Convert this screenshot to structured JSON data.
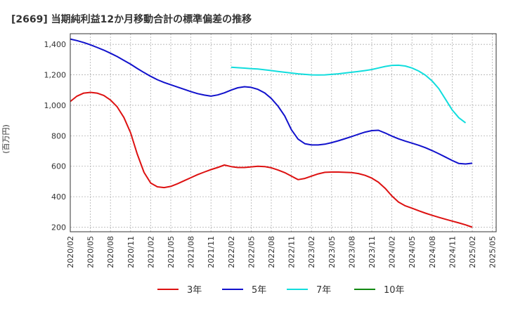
{
  "chart_data": {
    "type": "line",
    "title": "[2669]  当期純利益12か月移動合計の標準偏差の推移",
    "ylabel": "(百万円)",
    "xlabel": "",
    "ylim": [
      170,
      1470
    ],
    "yticks": [
      200,
      400,
      600,
      800,
      1000,
      1200,
      1400
    ],
    "ytick_labels": [
      "200",
      "400",
      "600",
      "800",
      "1,000",
      "1,200",
      "1,400"
    ],
    "x_range": [
      0,
      60
    ],
    "xticks": [
      {
        "pos": 0,
        "label": "2020/02"
      },
      {
        "pos": 3,
        "label": "2020/05"
      },
      {
        "pos": 6,
        "label": "2020/08"
      },
      {
        "pos": 9,
        "label": "2020/11"
      },
      {
        "pos": 12,
        "label": "2021/02"
      },
      {
        "pos": 15,
        "label": "2021/05"
      },
      {
        "pos": 18,
        "label": "2021/08"
      },
      {
        "pos": 21,
        "label": "2021/11"
      },
      {
        "pos": 24,
        "label": "2022/02"
      },
      {
        "pos": 27,
        "label": "2022/05"
      },
      {
        "pos": 30,
        "label": "2022/08"
      },
      {
        "pos": 33,
        "label": "2022/11"
      },
      {
        "pos": 36,
        "label": "2023/02"
      },
      {
        "pos": 39,
        "label": "2023/05"
      },
      {
        "pos": 42,
        "label": "2023/08"
      },
      {
        "pos": 45,
        "label": "2023/11"
      },
      {
        "pos": 48,
        "label": "2024/02"
      },
      {
        "pos": 51,
        "label": "2024/05"
      },
      {
        "pos": 54,
        "label": "2024/08"
      },
      {
        "pos": 57,
        "label": "2024/11"
      },
      {
        "pos": 60,
        "label": "2025/02"
      },
      {
        "pos": 63,
        "label": "2025/05"
      }
    ],
    "legend_position": "bottom",
    "series": [
      {
        "name": "3年",
        "color": "#dd1111",
        "points": [
          [
            0,
            1025
          ],
          [
            1,
            1060
          ],
          [
            2,
            1080
          ],
          [
            3,
            1085
          ],
          [
            4,
            1080
          ],
          [
            5,
            1065
          ],
          [
            6,
            1035
          ],
          [
            7,
            990
          ],
          [
            8,
            920
          ],
          [
            9,
            820
          ],
          [
            10,
            680
          ],
          [
            11,
            560
          ],
          [
            12,
            490
          ],
          [
            13,
            465
          ],
          [
            14,
            460
          ],
          [
            15,
            468
          ],
          [
            16,
            485
          ],
          [
            17,
            505
          ],
          [
            18,
            525
          ],
          [
            19,
            545
          ],
          [
            20,
            562
          ],
          [
            21,
            578
          ],
          [
            22,
            592
          ],
          [
            23,
            608
          ],
          [
            24,
            598
          ],
          [
            25,
            592
          ],
          [
            26,
            592
          ],
          [
            27,
            596
          ],
          [
            28,
            600
          ],
          [
            29,
            598
          ],
          [
            30,
            590
          ],
          [
            31,
            575
          ],
          [
            32,
            558
          ],
          [
            33,
            535
          ],
          [
            34,
            512
          ],
          [
            35,
            520
          ],
          [
            36,
            535
          ],
          [
            37,
            550
          ],
          [
            38,
            560
          ],
          [
            39,
            562
          ],
          [
            40,
            562
          ],
          [
            41,
            560
          ],
          [
            42,
            558
          ],
          [
            43,
            552
          ],
          [
            44,
            540
          ],
          [
            45,
            522
          ],
          [
            46,
            495
          ],
          [
            47,
            455
          ],
          [
            48,
            405
          ],
          [
            49,
            365
          ],
          [
            50,
            340
          ],
          [
            51,
            325
          ],
          [
            52,
            308
          ],
          [
            53,
            292
          ],
          [
            54,
            278
          ],
          [
            55,
            265
          ],
          [
            56,
            252
          ],
          [
            57,
            240
          ],
          [
            58,
            228
          ],
          [
            59,
            215
          ],
          [
            60,
            200
          ]
        ]
      },
      {
        "name": "5年",
        "color": "#1111cc",
        "points": [
          [
            0,
            1435
          ],
          [
            1,
            1425
          ],
          [
            2,
            1412
          ],
          [
            3,
            1397
          ],
          [
            4,
            1380
          ],
          [
            5,
            1362
          ],
          [
            6,
            1342
          ],
          [
            7,
            1320
          ],
          [
            8,
            1295
          ],
          [
            9,
            1270
          ],
          [
            10,
            1242
          ],
          [
            11,
            1215
          ],
          [
            12,
            1190
          ],
          [
            13,
            1168
          ],
          [
            14,
            1150
          ],
          [
            15,
            1135
          ],
          [
            16,
            1120
          ],
          [
            17,
            1105
          ],
          [
            18,
            1090
          ],
          [
            19,
            1077
          ],
          [
            20,
            1067
          ],
          [
            21,
            1060
          ],
          [
            22,
            1068
          ],
          [
            23,
            1082
          ],
          [
            24,
            1100
          ],
          [
            25,
            1115
          ],
          [
            26,
            1122
          ],
          [
            27,
            1118
          ],
          [
            28,
            1105
          ],
          [
            29,
            1082
          ],
          [
            30,
            1045
          ],
          [
            31,
            995
          ],
          [
            32,
            930
          ],
          [
            33,
            840
          ],
          [
            34,
            778
          ],
          [
            35,
            748
          ],
          [
            36,
            740
          ],
          [
            37,
            740
          ],
          [
            38,
            745
          ],
          [
            39,
            755
          ],
          [
            40,
            767
          ],
          [
            41,
            781
          ],
          [
            42,
            795
          ],
          [
            43,
            810
          ],
          [
            44,
            824
          ],
          [
            45,
            834
          ],
          [
            46,
            836
          ],
          [
            47,
            818
          ],
          [
            48,
            798
          ],
          [
            49,
            780
          ],
          [
            50,
            765
          ],
          [
            51,
            752
          ],
          [
            52,
            738
          ],
          [
            53,
            722
          ],
          [
            54,
            703
          ],
          [
            55,
            682
          ],
          [
            56,
            660
          ],
          [
            57,
            638
          ],
          [
            58,
            618
          ],
          [
            59,
            615
          ],
          [
            60,
            620
          ]
        ]
      },
      {
        "name": "7年",
        "color": "#11dddd",
        "points": [
          [
            24,
            1250
          ],
          [
            25,
            1247
          ],
          [
            26,
            1244
          ],
          [
            27,
            1241
          ],
          [
            28,
            1238
          ],
          [
            29,
            1233
          ],
          [
            30,
            1228
          ],
          [
            31,
            1222
          ],
          [
            32,
            1217
          ],
          [
            33,
            1212
          ],
          [
            34,
            1207
          ],
          [
            35,
            1203
          ],
          [
            36,
            1200
          ],
          [
            37,
            1199
          ],
          [
            38,
            1200
          ],
          [
            39,
            1203
          ],
          [
            40,
            1207
          ],
          [
            41,
            1212
          ],
          [
            42,
            1217
          ],
          [
            43,
            1222
          ],
          [
            44,
            1228
          ],
          [
            45,
            1235
          ],
          [
            46,
            1245
          ],
          [
            47,
            1255
          ],
          [
            48,
            1262
          ],
          [
            49,
            1263
          ],
          [
            50,
            1258
          ],
          [
            51,
            1245
          ],
          [
            52,
            1225
          ],
          [
            53,
            1198
          ],
          [
            54,
            1160
          ],
          [
            55,
            1110
          ],
          [
            56,
            1040
          ],
          [
            57,
            970
          ],
          [
            58,
            918
          ],
          [
            59,
            885
          ]
        ]
      },
      {
        "name": "10年",
        "color": "#118811",
        "points": []
      }
    ]
  }
}
